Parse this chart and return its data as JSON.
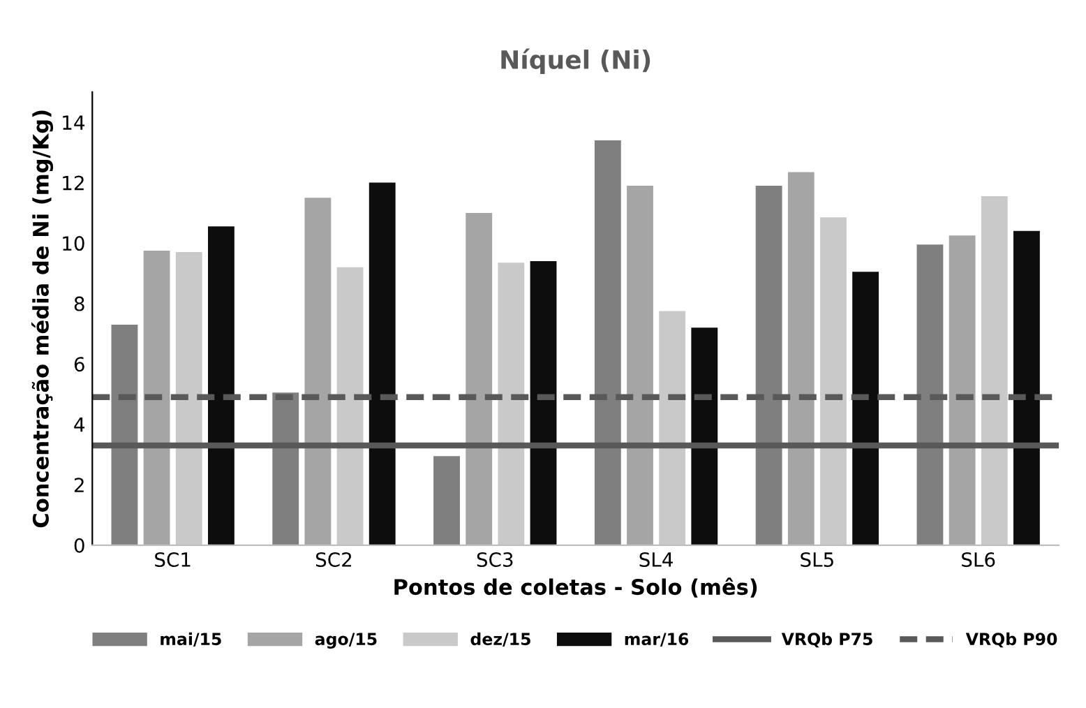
{
  "chart_data": {
    "type": "bar",
    "title": "Níquel (Ni)",
    "xlabel": "Pontos de coletas - Solo (mês)",
    "ylabel": "Concentração média de Ni (mg/Kg)",
    "categories": [
      "SC1",
      "SC2",
      "SC3",
      "SL4",
      "SL5",
      "SL6"
    ],
    "series": [
      {
        "name": "mai/15",
        "color": "#7f7f7f",
        "values": [
          7.3,
          5.05,
          2.95,
          13.4,
          11.9,
          9.95
        ]
      },
      {
        "name": "ago/15",
        "color": "#a5a5a5",
        "values": [
          9.75,
          11.5,
          11.0,
          11.9,
          12.35,
          10.25
        ]
      },
      {
        "name": "dez/15",
        "color": "#c9c9c9",
        "values": [
          9.7,
          9.2,
          9.35,
          7.75,
          10.85,
          11.55
        ]
      },
      {
        "name": "mar/16",
        "color": "#0d0d0d",
        "values": [
          10.55,
          12.0,
          9.4,
          7.2,
          9.05,
          10.4
        ]
      }
    ],
    "ref_lines": [
      {
        "axis": "y",
        "value": 3.3,
        "label": "VRQb P75",
        "color": "#595959",
        "line_style": "solid"
      },
      {
        "axis": "y",
        "value": 4.9,
        "label": "VRQb P90",
        "color": "#595959",
        "line_style": "dashed"
      }
    ],
    "ylim": [
      0,
      15
    ],
    "yticks": [
      0,
      2,
      4,
      6,
      8,
      10,
      12,
      14
    ],
    "grid": false,
    "legend": "bottom"
  }
}
